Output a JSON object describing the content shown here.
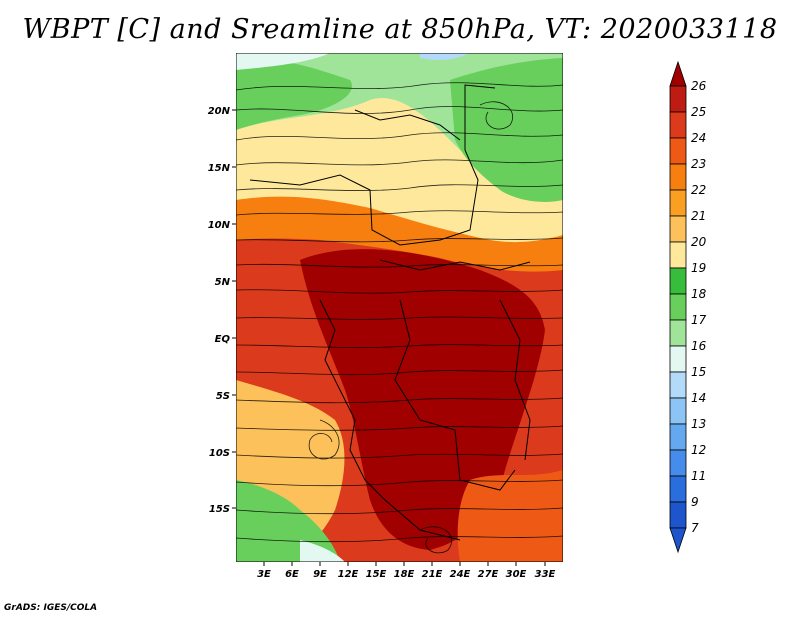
{
  "title": "WBPT [C] and Sreamline at 850hPa, VT: 2020033118",
  "credit": "GrADS: IGES/COLA",
  "map": {
    "lat_labels": [
      "20N",
      "15N",
      "10N",
      "5N",
      "EQ",
      "5S",
      "10S",
      "15S"
    ],
    "lon_labels": [
      "3E",
      "6E",
      "9E",
      "12E",
      "15E",
      "18E",
      "21E",
      "24E",
      "27E",
      "30E",
      "33E"
    ]
  },
  "colorbar": {
    "labels": [
      "26",
      "25",
      "24",
      "23",
      "22",
      "21",
      "20",
      "19",
      "18",
      "17",
      "16",
      "15",
      "14",
      "13",
      "12",
      "11",
      "9",
      "7"
    ],
    "colors": [
      "#a00000",
      "#be1c12",
      "#dc3a1c",
      "#ee5a16",
      "#f77f10",
      "#fa9f22",
      "#fcc15a",
      "#fde89c",
      "#38bc3c",
      "#68cf5c",
      "#a0e49a",
      "#e4f8f2",
      "#b4dafa",
      "#8cc4f6",
      "#64a8f0",
      "#468cea",
      "#2a6ede",
      "#1e54cc"
    ]
  }
}
